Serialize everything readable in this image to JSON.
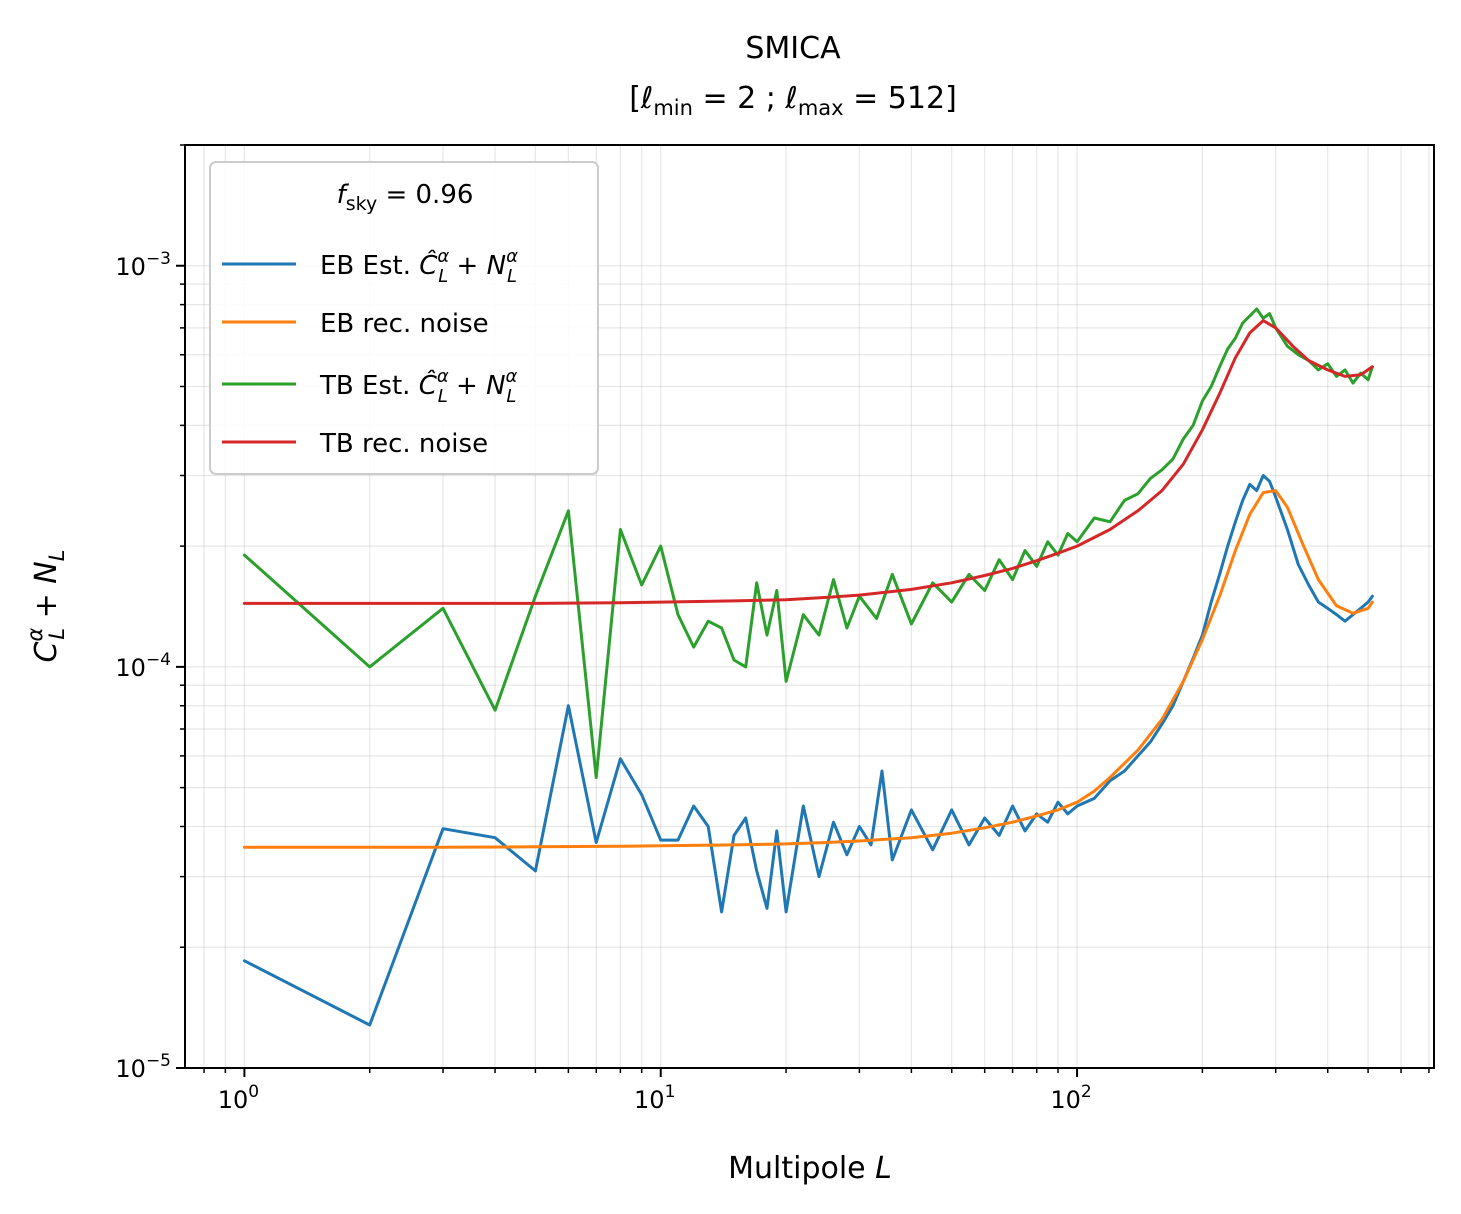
{
  "chart_data": {
    "type": "line",
    "title": "SMICA",
    "subtitle": "[ℓmin = 2 ; ℓmax = 512]",
    "subtitle_parts": {
      "open": "[",
      "ell": "ℓ",
      "min_sub": "min",
      "eq_min": " = 2 ; ",
      "max_sub": "max",
      "eq_max": " = 512]"
    },
    "xlabel": "Multipole L",
    "xlabel_parts": {
      "text": "Multipole ",
      "var": "L"
    },
    "ylabel": "C_L^α + N_L",
    "ylabel_parts": {
      "C": "C",
      "sub": "L",
      "sup": "α",
      "plus": " + ",
      "N": "N",
      "nsub": "L"
    },
    "x_scale": "log",
    "y_scale": "log",
    "xlim": [
      0.72,
      720
    ],
    "ylim": [
      1e-05,
      0.002
    ],
    "x_ticks": [
      {
        "value": 1,
        "base": "10",
        "exp": "0"
      },
      {
        "value": 10,
        "base": "10",
        "exp": "1"
      },
      {
        "value": 100,
        "base": "10",
        "exp": "2"
      }
    ],
    "y_ticks": [
      {
        "value": 1e-05,
        "base": "10",
        "exp": "−5"
      },
      {
        "value": 0.0001,
        "base": "10",
        "exp": "−4"
      },
      {
        "value": 0.001,
        "base": "10",
        "exp": "−3"
      }
    ],
    "grid": true,
    "legend": {
      "placement": "top-left",
      "title_parts": {
        "f": "f",
        "sub": "sky",
        "eq": " = 0.96"
      },
      "entries": [
        {
          "key": "eb_est",
          "prefix": "EB Est. ",
          "math": true,
          "color": "#1f77b4"
        },
        {
          "key": "eb_noise",
          "label": "EB rec. noise",
          "math": false,
          "color": "#ff7f0e"
        },
        {
          "key": "tb_est",
          "prefix": "TB Est. ",
          "math": true,
          "color": "#2ca02c"
        },
        {
          "key": "tb_noise",
          "label": "TB rec. noise",
          "math": false,
          "color": "#d62728"
        }
      ]
    },
    "series": [
      {
        "key": "tb_est",
        "color": "#2ca02c",
        "x": [
          1,
          2,
          3,
          4,
          5,
          6,
          7,
          8,
          9,
          10,
          11,
          12,
          13,
          14,
          15,
          16,
          17,
          18,
          19,
          20,
          22,
          24,
          26,
          28,
          30,
          33,
          36,
          40,
          45,
          50,
          55,
          60,
          65,
          70,
          75,
          80,
          85,
          90,
          95,
          100,
          110,
          120,
          130,
          140,
          150,
          160,
          170,
          180,
          190,
          200,
          210,
          220,
          230,
          240,
          250,
          260,
          270,
          280,
          290,
          300,
          320,
          340,
          360,
          380,
          400,
          420,
          440,
          460,
          480,
          500,
          512
        ],
        "y": [
          0.00019,
          0.0001,
          0.00014,
          7.8e-05,
          0.00015,
          0.000245,
          5.3e-05,
          0.00022,
          0.00016,
          0.0002,
          0.000135,
          0.000112,
          0.00013,
          0.000125,
          0.000104,
          0.0001,
          0.000162,
          0.00012,
          0.000155,
          9.2e-05,
          0.000135,
          0.00012,
          0.000165,
          0.000125,
          0.00015,
          0.000132,
          0.00017,
          0.000128,
          0.000162,
          0.000145,
          0.00017,
          0.000155,
          0.000185,
          0.000165,
          0.000195,
          0.000178,
          0.000205,
          0.00019,
          0.000215,
          0.000205,
          0.000235,
          0.00023,
          0.00026,
          0.00027,
          0.000295,
          0.00031,
          0.00033,
          0.00037,
          0.0004,
          0.00046,
          0.0005,
          0.00056,
          0.00062,
          0.00066,
          0.00072,
          0.00075,
          0.00078,
          0.00074,
          0.00076,
          0.0007,
          0.00063,
          0.0006,
          0.00058,
          0.00055,
          0.00057,
          0.00053,
          0.00055,
          0.00051,
          0.00054,
          0.00052,
          0.00056
        ]
      },
      {
        "key": "tb_noise",
        "color": "#d62728",
        "x": [
          1,
          2,
          3,
          5,
          8,
          10,
          15,
          20,
          25,
          30,
          40,
          50,
          60,
          70,
          80,
          90,
          100,
          120,
          140,
          160,
          180,
          200,
          220,
          240,
          260,
          280,
          300,
          330,
          360,
          400,
          440,
          480,
          512
        ],
        "y": [
          0.000144,
          0.000144,
          0.000144,
          0.000144,
          0.0001445,
          0.000145,
          0.000146,
          0.000147,
          0.000149,
          0.000151,
          0.000156,
          0.000162,
          0.000169,
          0.000176,
          0.000184,
          0.000192,
          0.0002,
          0.00022,
          0.000245,
          0.000275,
          0.00032,
          0.00039,
          0.00048,
          0.00059,
          0.00068,
          0.00073,
          0.0007,
          0.00063,
          0.00058,
          0.00055,
          0.00053,
          0.000535,
          0.00056
        ]
      },
      {
        "key": "eb_est",
        "color": "#1f77b4",
        "x": [
          1,
          2,
          3,
          4,
          5,
          6,
          7,
          8,
          9,
          10,
          11,
          12,
          13,
          14,
          15,
          16,
          17,
          18,
          19,
          20,
          22,
          24,
          26,
          28,
          30,
          32,
          34,
          36,
          40,
          45,
          50,
          55,
          60,
          65,
          70,
          75,
          80,
          85,
          90,
          95,
          100,
          110,
          120,
          130,
          140,
          150,
          160,
          170,
          180,
          190,
          200,
          210,
          220,
          230,
          240,
          250,
          260,
          270,
          280,
          290,
          300,
          320,
          340,
          360,
          380,
          400,
          420,
          440,
          460,
          480,
          500,
          512
        ],
        "y": [
          1.85e-05,
          1.28e-05,
          3.95e-05,
          3.75e-05,
          3.1e-05,
          8e-05,
          3.65e-05,
          5.9e-05,
          4.8e-05,
          3.7e-05,
          3.7e-05,
          4.5e-05,
          4e-05,
          2.45e-05,
          3.8e-05,
          4.2e-05,
          3.1e-05,
          2.5e-05,
          3.9e-05,
          2.45e-05,
          4.5e-05,
          3e-05,
          4.1e-05,
          3.4e-05,
          4e-05,
          3.6e-05,
          5.5e-05,
          3.3e-05,
          4.4e-05,
          3.5e-05,
          4.4e-05,
          3.6e-05,
          4.2e-05,
          3.8e-05,
          4.5e-05,
          3.9e-05,
          4.3e-05,
          4.1e-05,
          4.6e-05,
          4.3e-05,
          4.5e-05,
          4.7e-05,
          5.2e-05,
          5.5e-05,
          6e-05,
          6.5e-05,
          7.2e-05,
          8e-05,
          9.2e-05,
          0.000105,
          0.00012,
          0.000145,
          0.00017,
          0.0002,
          0.00023,
          0.00026,
          0.000285,
          0.000275,
          0.0003,
          0.00029,
          0.000265,
          0.00022,
          0.00018,
          0.00016,
          0.000145,
          0.00014,
          0.000135,
          0.00013,
          0.000135,
          0.00014,
          0.000145,
          0.00015
        ]
      },
      {
        "key": "eb_noise",
        "color": "#ff7f0e",
        "x": [
          1,
          2,
          3,
          5,
          8,
          10,
          15,
          20,
          25,
          30,
          40,
          50,
          60,
          70,
          80,
          90,
          100,
          110,
          120,
          140,
          160,
          180,
          200,
          220,
          240,
          260,
          280,
          300,
          320,
          350,
          380,
          420,
          460,
          500,
          512
        ],
        "y": [
          3.55e-05,
          3.55e-05,
          3.55e-05,
          3.56e-05,
          3.57e-05,
          3.58e-05,
          3.6e-05,
          3.62e-05,
          3.65e-05,
          3.68e-05,
          3.75e-05,
          3.85e-05,
          3.97e-05,
          4.1e-05,
          4.25e-05,
          4.4e-05,
          4.6e-05,
          4.9e-05,
          5.3e-05,
          6.2e-05,
          7.4e-05,
          9.2e-05,
          0.000117,
          0.00015,
          0.000195,
          0.00024,
          0.000272,
          0.000275,
          0.00025,
          0.0002,
          0.000165,
          0.000142,
          0.000136,
          0.00014,
          0.000145
        ]
      }
    ]
  }
}
